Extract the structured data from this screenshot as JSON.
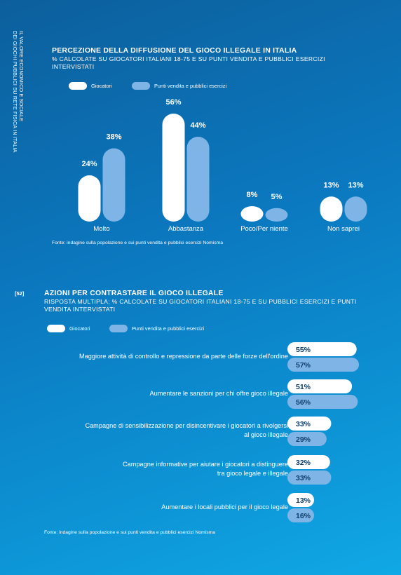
{
  "side_text": {
    "line1": "IL VALORE ECONOMICO E SOCIALE",
    "line2": "DEI GIOCHI PUBBLICI SU RETE FISICA IN ITALIA"
  },
  "page_number": "[52]",
  "colors": {
    "series1": "#ffffff",
    "series2": "#7fb5e6",
    "series2_text": "#0d3c6b",
    "series1_text": "#0d3c6b"
  },
  "chart1": {
    "title": "PERCEZIONE DELLA DIFFUSIONE DEL GIOCO ILLEGALE IN ITALIA",
    "subtitle": "% CALCOLATE SU GIOCATORI ITALIANI 18-75 E SU PUNTI VENDITA E PUBBLICI ESERCIZI INTERVISTATI",
    "legend": [
      "Giocatori",
      "Punti vendita e pubblici esercizi"
    ],
    "source": "Fonte: indagine sulla popolazione e sui punti vendita e pubblici esercizi Nomisma"
  },
  "chart2": {
    "title": "AZIONI PER CONTRASTARE IL GIOCO ILLEGALE",
    "subtitle": "RISPOSTA MULTIPLA; % CALCOLATE SU GIOCATORI ITALIANI 18-75 E SU PUBBLICI ESERCIZI E PUNTI VENDITA INTERVISTATI",
    "legend": [
      "Giocatori",
      "Punti vendita e pubblici esercizi"
    ],
    "source": "Fonte: indagine sulla popolazione e sui punti vendita e pubblici esercizi Nomisma"
  },
  "chart_data": [
    {
      "type": "bar",
      "title": "PERCEZIONE DELLA DIFFUSIONE DEL GIOCO ILLEGALE IN ITALIA",
      "subtitle": "% CALCOLATE SU GIOCATORI ITALIANI 18-75 E SU PUNTI VENDITA E PUBBLICI ESERCIZI INTERVISTATI",
      "categories": [
        "Molto",
        "Abbastanza",
        "Poco/Per niente",
        "Non saprei"
      ],
      "series": [
        {
          "name": "Giocatori",
          "values": [
            24,
            56,
            8,
            13
          ],
          "labels": [
            "24%",
            "56%",
            "8%",
            "13%"
          ]
        },
        {
          "name": "Punti vendita e pubblici esercizi",
          "values": [
            38,
            44,
            5,
            13
          ],
          "labels": [
            "38%",
            "44%",
            "5%",
            "13%"
          ]
        }
      ],
      "ylim": [
        0,
        56
      ],
      "grid": false,
      "legend_position": "top-left"
    },
    {
      "type": "bar",
      "orientation": "horizontal",
      "title": "AZIONI PER CONTRASTARE IL GIOCO ILLEGALE",
      "subtitle": "RISPOSTA MULTIPLA; % CALCOLATE SU GIOCATORI ITALIANI 18-75 E SU PUBBLICI ESERCIZI E PUNTI VENDITA INTERVISTATI",
      "categories": [
        [
          "Maggiore attività di controllo e repressione da parte delle forze dell'ordine"
        ],
        [
          "Aumentare le sanzioni per chi offre gioco illegale"
        ],
        [
          "Campagne di sensibilizzazione per disincentivare i giocatori a rivolgersi",
          "al gioco illegale"
        ],
        [
          "Campagne informative per aiutare i giocatori a distinguere",
          "tra gioco legale e illegale"
        ],
        [
          "Aumentare i locali pubblici per il gioco legale"
        ]
      ],
      "series": [
        {
          "name": "Giocatori",
          "values": [
            55,
            51,
            33,
            32,
            13
          ],
          "labels": [
            "55%",
            "51%",
            "33%",
            "32%",
            "13%"
          ]
        },
        {
          "name": "Punti vendita e pubblici esercizi",
          "values": [
            57,
            56,
            29,
            33,
            16
          ],
          "labels": [
            "57%",
            "56%",
            "29%",
            "33%",
            "16%"
          ]
        }
      ],
      "xlim": [
        0,
        57
      ],
      "grid": false,
      "legend_position": "top-left"
    }
  ]
}
